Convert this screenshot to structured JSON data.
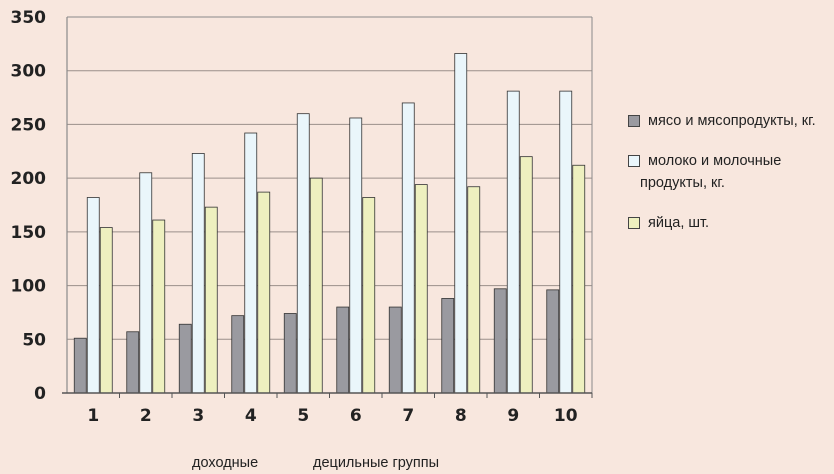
{
  "chart_data": {
    "type": "bar",
    "categories": [
      "1",
      "2",
      "3",
      "4",
      "5",
      "6",
      "7",
      "8",
      "9",
      "10"
    ],
    "series": [
      {
        "name": "мясо и мясопродукты, кг.",
        "color": "#9a9aa0",
        "values": [
          51,
          57,
          64,
          72,
          74,
          80,
          80,
          88,
          97,
          96
        ]
      },
      {
        "name": "молоко и молочные продукты, кг.",
        "color": "#eaf6fb",
        "values": [
          182,
          205,
          223,
          242,
          260,
          256,
          270,
          316,
          281,
          281
        ]
      },
      {
        "name": "яйца, шт.",
        "color": "#eef0bf",
        "values": [
          154,
          161,
          173,
          187,
          200,
          182,
          194,
          192,
          220,
          212
        ]
      }
    ],
    "yticks": [
      "0",
      "50",
      "100",
      "150",
      "200",
      "250",
      "300",
      "350"
    ],
    "ylim": [
      0,
      350
    ],
    "xlabel_parts": [
      "доходные",
      "децильные группы"
    ],
    "grid": true,
    "legend_position": "right"
  },
  "legend": {
    "items": [
      {
        "lines": [
          "мясо и мясопродукты, кг."
        ]
      },
      {
        "lines": [
          "молоко и молочные",
          "продукты, кг."
        ]
      },
      {
        "lines": [
          "яйца, шт."
        ]
      }
    ]
  }
}
